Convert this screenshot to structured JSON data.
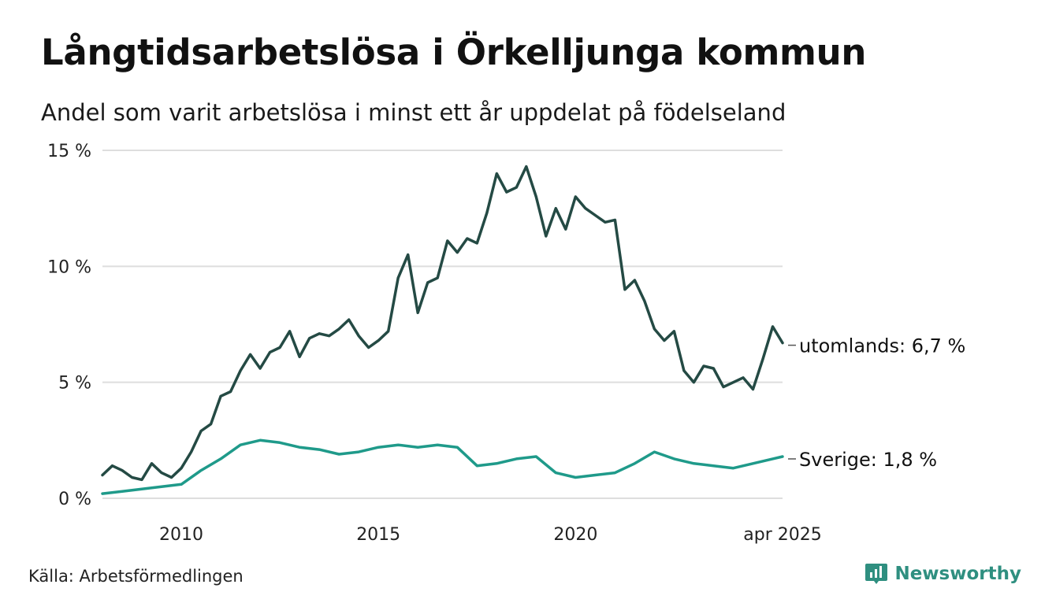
{
  "title": "Långtidsarbetslösa i Örkelljunga kommun",
  "subtitle": "Andel som varit arbetslösa i minst ett år uppdelat på födelseland",
  "source": "Källa: Arbetsförmedlingen",
  "brand": {
    "name": "Newsworthy",
    "icon": "newsworthy-logo-icon"
  },
  "chart_data": {
    "type": "line",
    "x_range": [
      "2008-01",
      "2025-04"
    ],
    "ylim": [
      0,
      15
    ],
    "yticks": [
      {
        "value": 0,
        "label": "0 %"
      },
      {
        "value": 5,
        "label": "5 %"
      },
      {
        "value": 10,
        "label": "10 %"
      },
      {
        "value": 15,
        "label": "15 %"
      }
    ],
    "xticks": [
      {
        "date": "2010-01",
        "label": "2010"
      },
      {
        "date": "2015-01",
        "label": "2015"
      },
      {
        "date": "2020-01",
        "label": "2020"
      },
      {
        "date": "2025-04",
        "label": "apr 2025"
      }
    ],
    "grid": true,
    "series": [
      {
        "name": "utomlands",
        "end_label": "utomlands: 6,7 %",
        "color": "#244a44",
        "points": [
          [
            "2008-01",
            1.0
          ],
          [
            "2008-04",
            1.4
          ],
          [
            "2008-07",
            1.2
          ],
          [
            "2008-10",
            0.9
          ],
          [
            "2009-01",
            0.8
          ],
          [
            "2009-04",
            1.5
          ],
          [
            "2009-07",
            1.1
          ],
          [
            "2009-10",
            0.9
          ],
          [
            "2010-01",
            1.3
          ],
          [
            "2010-04",
            2.0
          ],
          [
            "2010-07",
            2.9
          ],
          [
            "2010-10",
            3.2
          ],
          [
            "2011-01",
            4.4
          ],
          [
            "2011-04",
            4.6
          ],
          [
            "2011-07",
            5.5
          ],
          [
            "2011-10",
            6.2
          ],
          [
            "2012-01",
            5.6
          ],
          [
            "2012-04",
            6.3
          ],
          [
            "2012-07",
            6.5
          ],
          [
            "2012-10",
            7.2
          ],
          [
            "2013-01",
            6.1
          ],
          [
            "2013-04",
            6.9
          ],
          [
            "2013-07",
            7.1
          ],
          [
            "2013-10",
            7.0
          ],
          [
            "2014-01",
            7.3
          ],
          [
            "2014-04",
            7.7
          ],
          [
            "2014-07",
            7.0
          ],
          [
            "2014-10",
            6.5
          ],
          [
            "2015-01",
            6.8
          ],
          [
            "2015-04",
            7.2
          ],
          [
            "2015-07",
            9.5
          ],
          [
            "2015-10",
            10.5
          ],
          [
            "2016-01",
            8.0
          ],
          [
            "2016-04",
            9.3
          ],
          [
            "2016-07",
            9.5
          ],
          [
            "2016-10",
            11.1
          ],
          [
            "2017-01",
            10.6
          ],
          [
            "2017-04",
            11.2
          ],
          [
            "2017-07",
            11.0
          ],
          [
            "2017-10",
            12.3
          ],
          [
            "2018-01",
            14.0
          ],
          [
            "2018-04",
            13.2
          ],
          [
            "2018-07",
            13.4
          ],
          [
            "2018-10",
            14.3
          ],
          [
            "2019-01",
            13.0
          ],
          [
            "2019-04",
            11.3
          ],
          [
            "2019-07",
            12.5
          ],
          [
            "2019-10",
            11.6
          ],
          [
            "2020-01",
            13.0
          ],
          [
            "2020-04",
            12.5
          ],
          [
            "2020-07",
            12.2
          ],
          [
            "2020-10",
            11.9
          ],
          [
            "2021-01",
            12.0
          ],
          [
            "2021-04",
            9.0
          ],
          [
            "2021-07",
            9.4
          ],
          [
            "2021-10",
            8.5
          ],
          [
            "2022-01",
            7.3
          ],
          [
            "2022-04",
            6.8
          ],
          [
            "2022-07",
            7.2
          ],
          [
            "2022-10",
            5.5
          ],
          [
            "2023-01",
            5.0
          ],
          [
            "2023-04",
            5.7
          ],
          [
            "2023-07",
            5.6
          ],
          [
            "2023-10",
            4.8
          ],
          [
            "2024-01",
            5.0
          ],
          [
            "2024-04",
            5.2
          ],
          [
            "2024-07",
            4.7
          ],
          [
            "2024-10",
            6.0
          ],
          [
            "2025-01",
            7.4
          ],
          [
            "2025-04",
            6.7
          ]
        ]
      },
      {
        "name": "Sverige",
        "end_label": "Sverige: 1,8 %",
        "color": "#1f9a8a",
        "points": [
          [
            "2008-01",
            0.2
          ],
          [
            "2008-07",
            0.3
          ],
          [
            "2009-01",
            0.4
          ],
          [
            "2009-07",
            0.5
          ],
          [
            "2010-01",
            0.6
          ],
          [
            "2010-07",
            1.2
          ],
          [
            "2011-01",
            1.7
          ],
          [
            "2011-07",
            2.3
          ],
          [
            "2012-01",
            2.5
          ],
          [
            "2012-07",
            2.4
          ],
          [
            "2013-01",
            2.2
          ],
          [
            "2013-07",
            2.1
          ],
          [
            "2014-01",
            1.9
          ],
          [
            "2014-07",
            2.0
          ],
          [
            "2015-01",
            2.2
          ],
          [
            "2015-07",
            2.3
          ],
          [
            "2016-01",
            2.2
          ],
          [
            "2016-07",
            2.3
          ],
          [
            "2017-01",
            2.2
          ],
          [
            "2017-07",
            1.4
          ],
          [
            "2018-01",
            1.5
          ],
          [
            "2018-07",
            1.7
          ],
          [
            "2019-01",
            1.8
          ],
          [
            "2019-07",
            1.1
          ],
          [
            "2020-01",
            0.9
          ],
          [
            "2020-07",
            1.0
          ],
          [
            "2021-01",
            1.1
          ],
          [
            "2021-07",
            1.5
          ],
          [
            "2022-01",
            2.0
          ],
          [
            "2022-07",
            1.7
          ],
          [
            "2023-01",
            1.5
          ],
          [
            "2023-07",
            1.4
          ],
          [
            "2024-01",
            1.3
          ],
          [
            "2024-07",
            1.5
          ],
          [
            "2025-01",
            1.7
          ],
          [
            "2025-04",
            1.8
          ]
        ]
      }
    ]
  }
}
